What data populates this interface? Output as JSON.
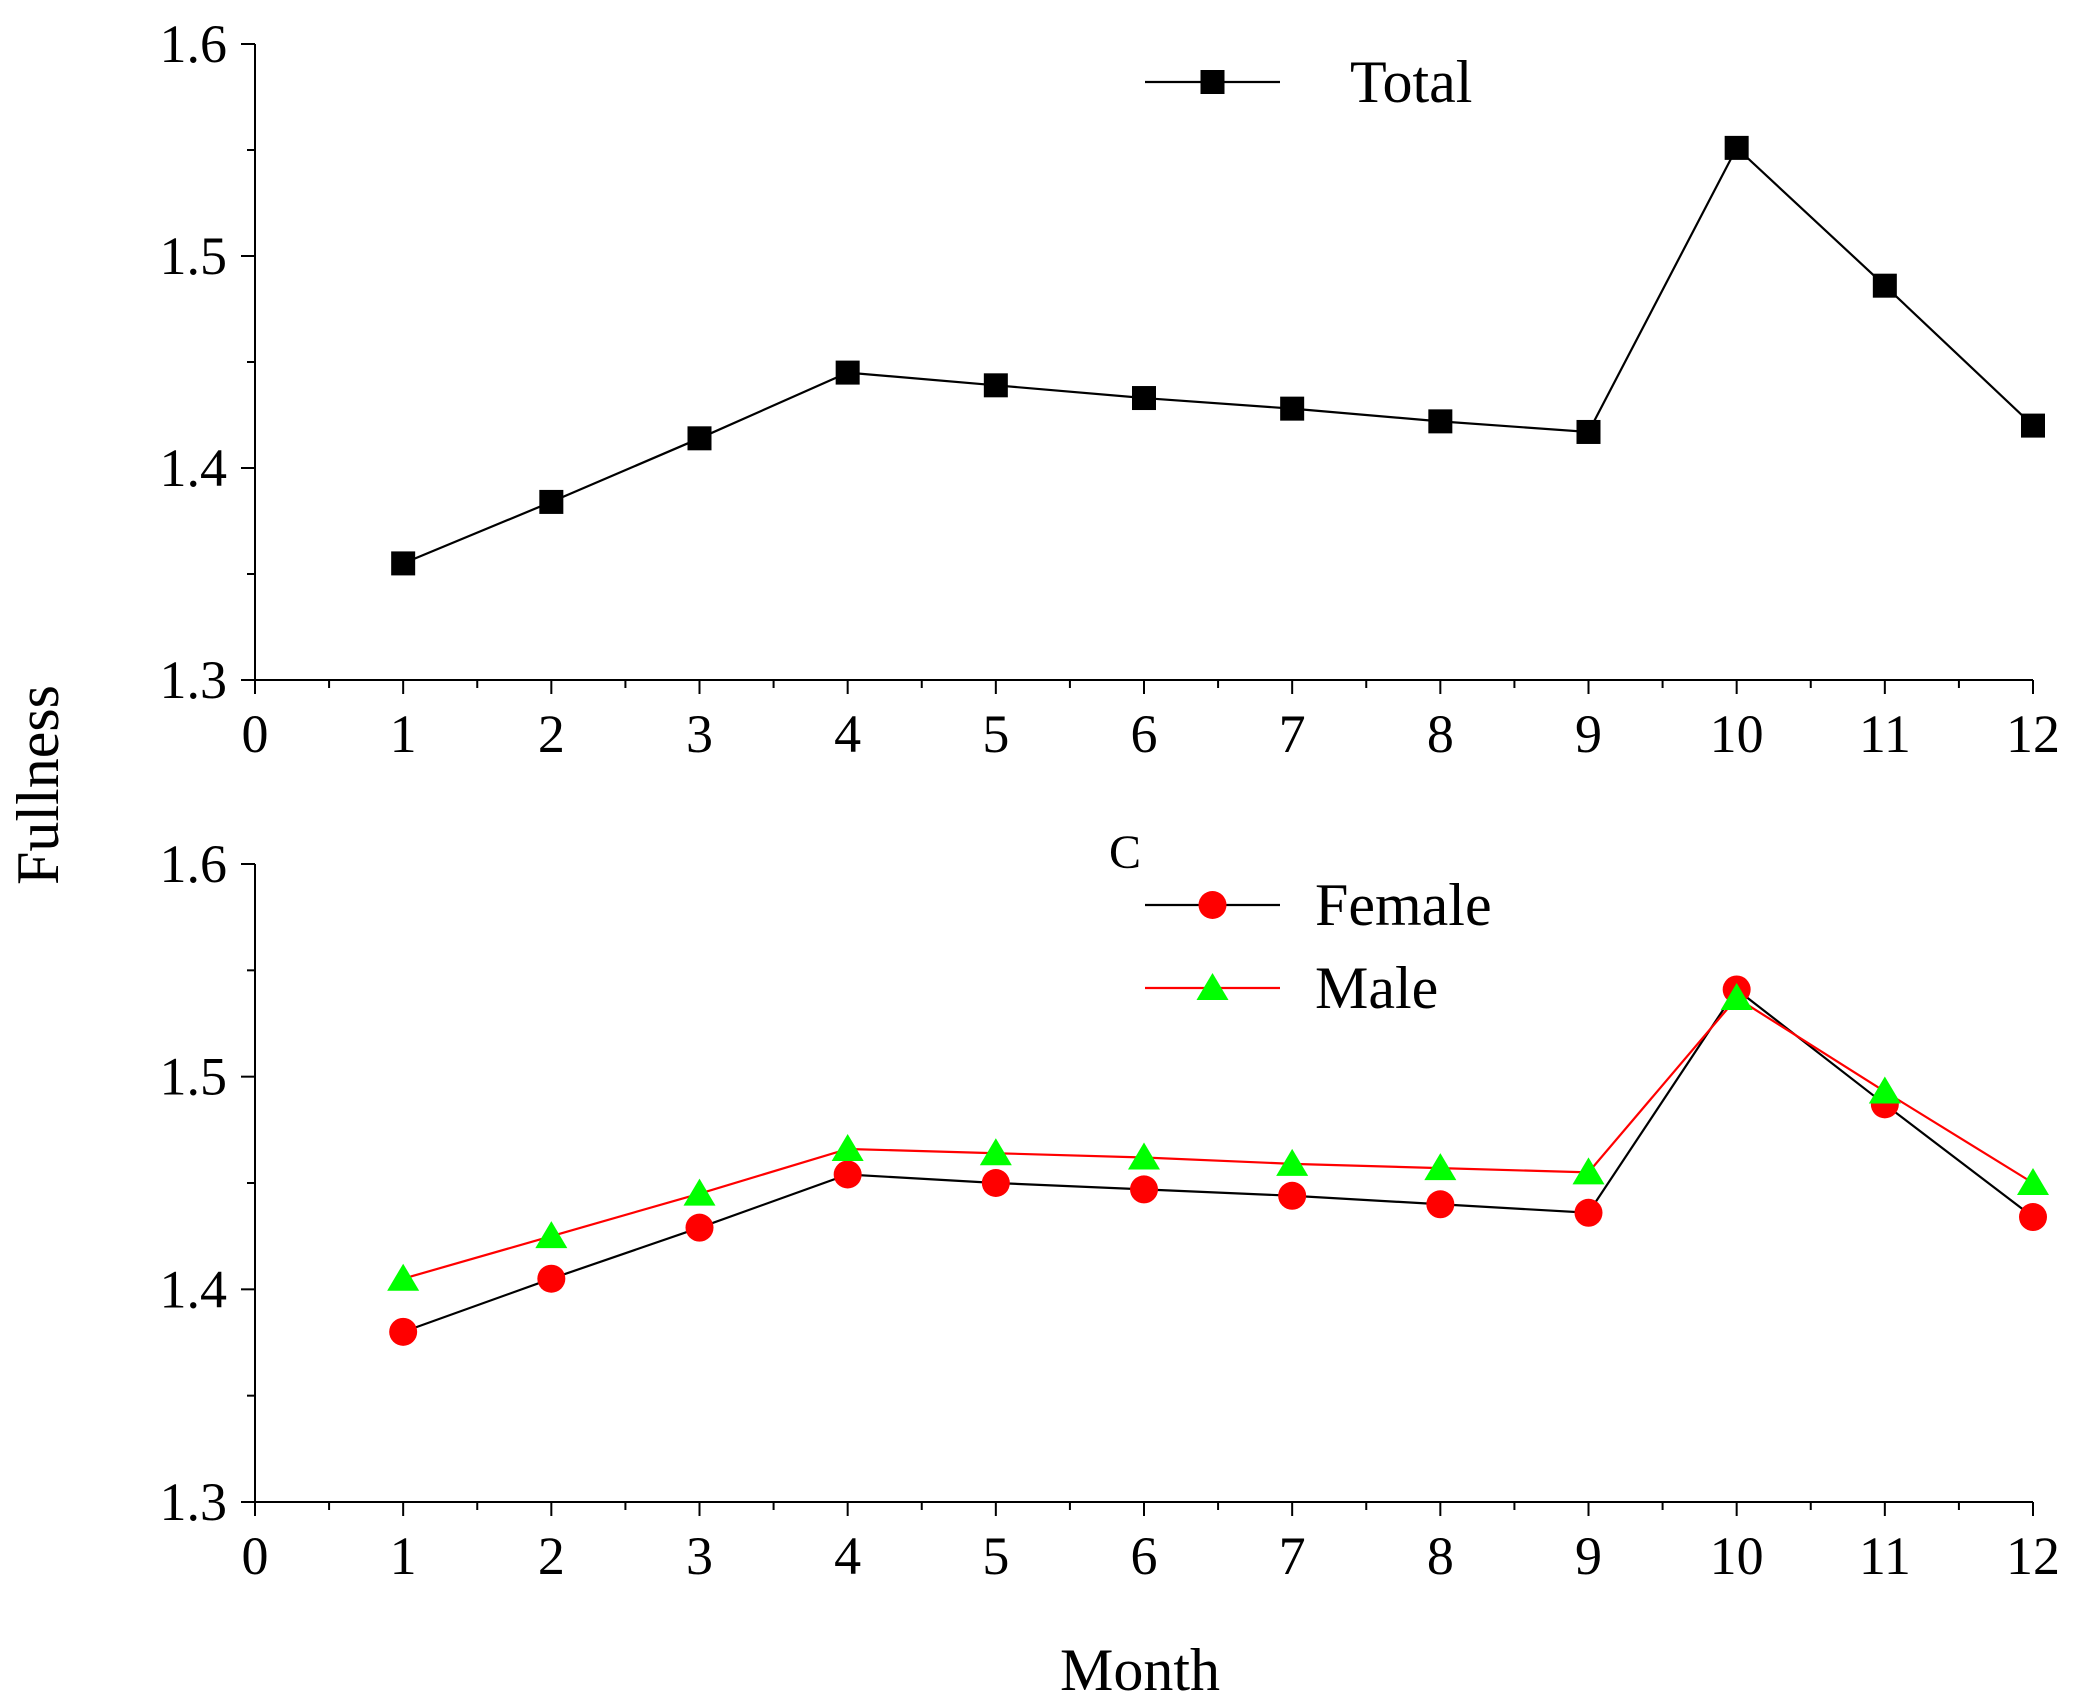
{
  "chart_data": {
    "type": "line",
    "ylabel": "Fullness",
    "xlabel": "Month",
    "panels": [
      {
        "id": "top",
        "tag": "",
        "xlim": [
          0,
          12
        ],
        "ylim": [
          1.3,
          1.6
        ],
        "x_ticks": [
          "0",
          "1",
          "2",
          "3",
          "4",
          "5",
          "6",
          "7",
          "8",
          "9",
          "10",
          "11",
          "12"
        ],
        "y_ticks": [
          "1.3",
          "1.4",
          "1.5",
          "1.6"
        ],
        "x": [
          1,
          2,
          3,
          4,
          5,
          6,
          7,
          8,
          9,
          10,
          11,
          12
        ],
        "series": [
          {
            "name": "Total",
            "marker": "square",
            "line_color": "#000000",
            "marker_color": "#000000",
            "values": [
              1.355,
              1.384,
              1.414,
              1.445,
              1.439,
              1.433,
              1.428,
              1.422,
              1.417,
              1.551,
              1.486,
              1.42
            ]
          }
        ]
      },
      {
        "id": "bottom",
        "tag": "C",
        "xlim": [
          0,
          12
        ],
        "ylim": [
          1.3,
          1.6
        ],
        "x_ticks": [
          "0",
          "1",
          "2",
          "3",
          "4",
          "5",
          "6",
          "7",
          "8",
          "9",
          "10",
          "11",
          "12"
        ],
        "y_ticks": [
          "1.3",
          "1.4",
          "1.5",
          "1.6"
        ],
        "x": [
          1,
          2,
          3,
          4,
          5,
          6,
          7,
          8,
          9,
          10,
          11,
          12
        ],
        "series": [
          {
            "name": "Female",
            "marker": "circle",
            "line_color": "#000000",
            "marker_color": "#ff0000",
            "values": [
              1.38,
              1.405,
              1.429,
              1.454,
              1.45,
              1.447,
              1.444,
              1.44,
              1.436,
              1.541,
              1.487,
              1.434
            ]
          },
          {
            "name": "Male",
            "marker": "triangle",
            "line_color": "#ff0000",
            "marker_color": "#00ff00",
            "values": [
              1.405,
              1.425,
              1.445,
              1.466,
              1.464,
              1.462,
              1.459,
              1.457,
              1.455,
              1.537,
              1.493,
              1.45
            ]
          }
        ]
      }
    ]
  }
}
